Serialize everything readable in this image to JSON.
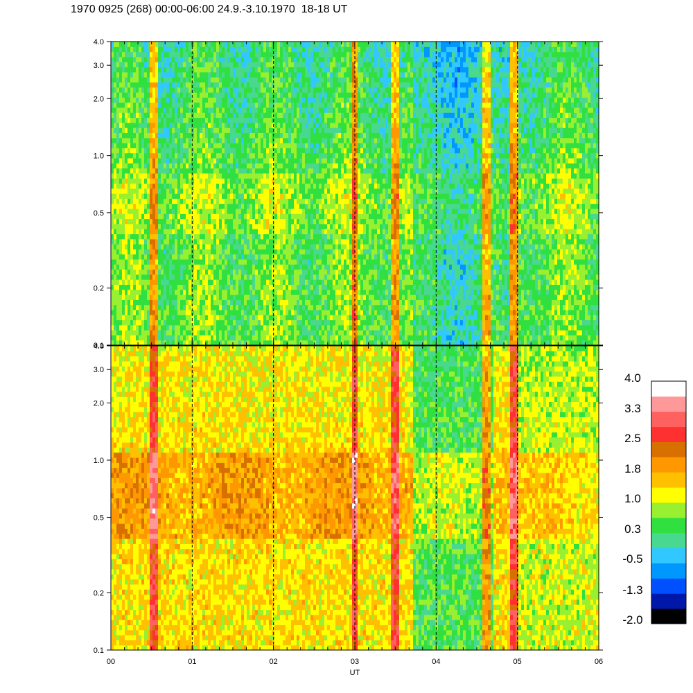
{
  "chart_data": {
    "type": "heatmap",
    "title": "1970 0925 (268) 00:00-06:00 24.9.-3.10.1970  18-18 UT",
    "xlabel": "UT",
    "x_tick_labels": [
      "00",
      "01",
      "02",
      "03",
      "04",
      "05",
      "06"
    ],
    "x_range_hours": [
      0,
      6
    ],
    "y_scale": "log",
    "y_range": [
      0.1,
      4.0
    ],
    "y_tick_labels": [
      "0.1",
      "0.2",
      "0.5",
      "1.0",
      "2.0",
      "3.0",
      "4.0"
    ],
    "panels": [
      {
        "name": "upper"
      },
      {
        "name": "lower"
      }
    ],
    "hour_separators": "dashed",
    "colorbar": {
      "labels": [
        "4.0",
        "3.3",
        "2.5",
        "1.8",
        "1.0",
        "0.3",
        "-0.5",
        "-1.3",
        "-2.0"
      ],
      "colors": [
        "#000000",
        "#0018aa",
        "#0050ff",
        "#0098ff",
        "#30c8ff",
        "#48d890",
        "#30e040",
        "#98f030",
        "#ffff00",
        "#ffc000",
        "#ff9800",
        "#d87000",
        "#ff3030",
        "#ff6060",
        "#ff9898",
        "#ffffff"
      ]
    }
  }
}
